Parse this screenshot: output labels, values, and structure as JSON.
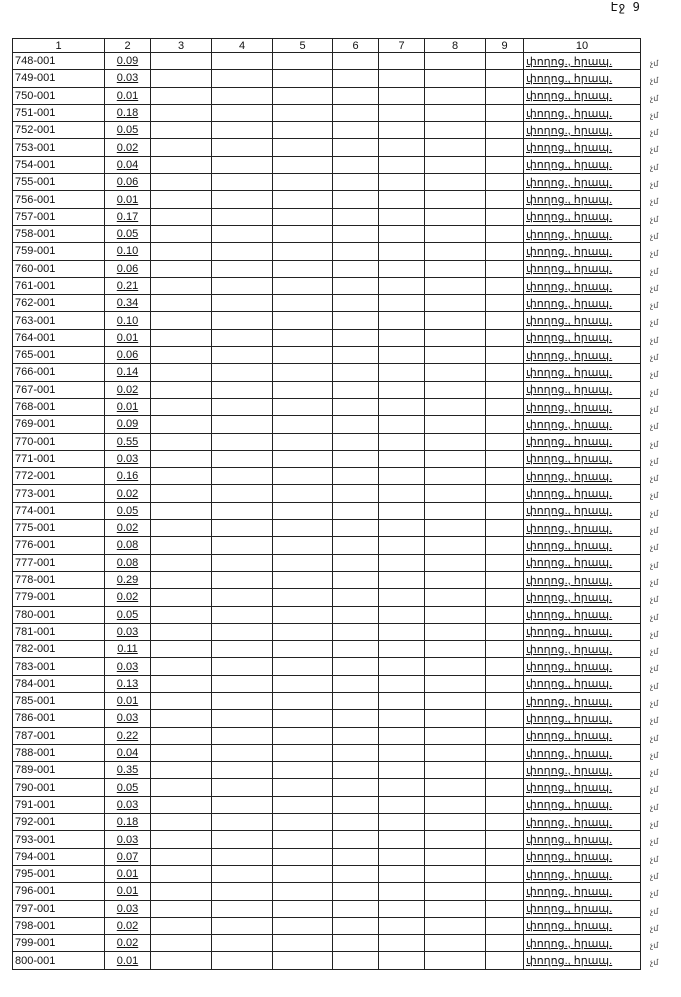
{
  "page_number": "Էջ 9",
  "headers": [
    "1",
    "2",
    "3",
    "4",
    "5",
    "6",
    "7",
    "8",
    "9",
    "10"
  ],
  "row_note": "փողոց., հրապ.",
  "side_mark": "չմ",
  "rows": [
    [
      "748-001",
      "0.09"
    ],
    [
      "749-001",
      "0.03"
    ],
    [
      "750-001",
      "0.01"
    ],
    [
      "751-001",
      "0.18"
    ],
    [
      "752-001",
      "0.05"
    ],
    [
      "753-001",
      "0.02"
    ],
    [
      "754-001",
      "0.04"
    ],
    [
      "755-001",
      "0.06"
    ],
    [
      "756-001",
      "0.01"
    ],
    [
      "757-001",
      "0.17"
    ],
    [
      "758-001",
      "0.05"
    ],
    [
      "759-001",
      "0.10"
    ],
    [
      "760-001",
      "0.06"
    ],
    [
      "761-001",
      "0.21"
    ],
    [
      "762-001",
      "0.34"
    ],
    [
      "763-001",
      "0.10"
    ],
    [
      "764-001",
      "0.01"
    ],
    [
      "765-001",
      "0.06"
    ],
    [
      "766-001",
      "0.14"
    ],
    [
      "767-001",
      "0.02"
    ],
    [
      "768-001",
      "0.01"
    ],
    [
      "769-001",
      "0.09"
    ],
    [
      "770-001",
      "0.55"
    ],
    [
      "771-001",
      "0.03"
    ],
    [
      "772-001",
      "0.16"
    ],
    [
      "773-001",
      "0.02"
    ],
    [
      "774-001",
      "0.05"
    ],
    [
      "775-001",
      "0.02"
    ],
    [
      "776-001",
      "0.08"
    ],
    [
      "777-001",
      "0.08"
    ],
    [
      "778-001",
      "0.29"
    ],
    [
      "779-001",
      "0.02"
    ],
    [
      "780-001",
      "0.05"
    ],
    [
      "781-001",
      "0.03"
    ],
    [
      "782-001",
      "0.11"
    ],
    [
      "783-001",
      "0.03"
    ],
    [
      "784-001",
      "0.13"
    ],
    [
      "785-001",
      "0.01"
    ],
    [
      "786-001",
      "0.03"
    ],
    [
      "787-001",
      "0.22"
    ],
    [
      "788-001",
      "0.04"
    ],
    [
      "789-001",
      "0.35"
    ],
    [
      "790-001",
      "0.05"
    ],
    [
      "791-001",
      "0.03"
    ],
    [
      "792-001",
      "0.18"
    ],
    [
      "793-001",
      "0.03"
    ],
    [
      "794-001",
      "0.07"
    ],
    [
      "795-001",
      "0.01"
    ],
    [
      "796-001",
      "0.01"
    ],
    [
      "797-001",
      "0.03"
    ],
    [
      "798-001",
      "0.02"
    ],
    [
      "799-001",
      "0.02"
    ],
    [
      "800-001",
      "0.01"
    ]
  ]
}
